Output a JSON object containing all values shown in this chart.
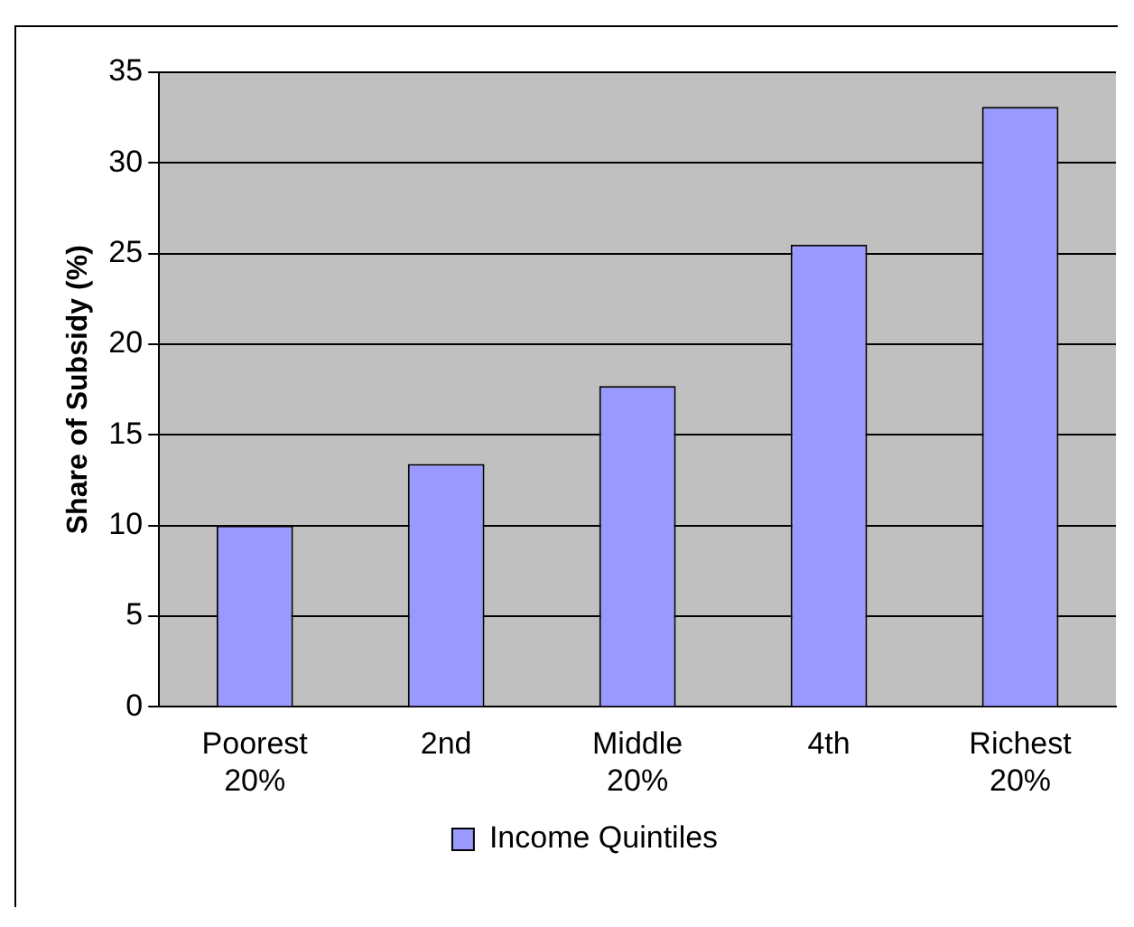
{
  "chart_data": {
    "type": "bar",
    "ylabel": "Share of Subsidy (%)",
    "categories": [
      "Poorest 20%",
      "2nd",
      "Middle 20%",
      "4th",
      "Richest 20%"
    ],
    "series": [
      {
        "name": "Income Quintiles",
        "color": "#9999ff",
        "values": [
          10.0,
          13.4,
          17.7,
          25.5,
          33.1
        ]
      }
    ],
    "ylim": [
      0,
      35
    ],
    "yticks": [
      0,
      5,
      10,
      15,
      20,
      25,
      30,
      35
    ],
    "grid": "y",
    "legend": "bottom"
  }
}
